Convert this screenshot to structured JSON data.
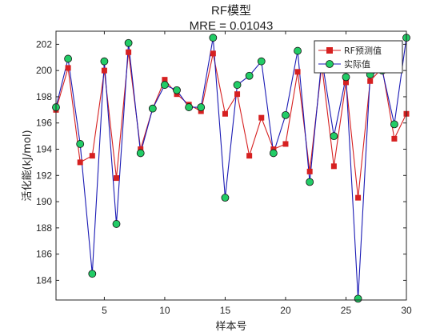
{
  "chart_data": {
    "type": "line",
    "title": "RF模型",
    "subtitle": "MRE = 0.01043",
    "xlabel": "样本号",
    "ylabel": "活化能(kJ/mol)",
    "xlim": [
      1,
      30
    ],
    "ylim": [
      182.5,
      203
    ],
    "xticks": [
      5,
      10,
      15,
      20,
      25,
      30
    ],
    "yticks": [
      184,
      186,
      188,
      190,
      192,
      194,
      196,
      198,
      200,
      202
    ],
    "grid": false,
    "legend_position": "top-right",
    "x": [
      1,
      2,
      3,
      4,
      5,
      6,
      7,
      8,
      9,
      10,
      11,
      12,
      13,
      14,
      15,
      16,
      17,
      18,
      19,
      20,
      21,
      22,
      23,
      24,
      25,
      26,
      27,
      28,
      29,
      30
    ],
    "series": [
      {
        "name": "RF预测值",
        "color": "#d62020",
        "marker": "square",
        "values": [
          197.0,
          200.2,
          193.0,
          193.5,
          200.0,
          191.8,
          201.4,
          194.0,
          197.1,
          199.3,
          198.2,
          197.4,
          196.9,
          201.3,
          196.7,
          198.2,
          193.5,
          196.4,
          194.0,
          194.4,
          199.9,
          192.3,
          200.4,
          192.7,
          199.1,
          190.3,
          199.2,
          200.2,
          194.8,
          196.7
        ]
      },
      {
        "name": "实际值",
        "color": "#1a1ab4",
        "marker": "circle",
        "marker_fill": "#22cc66",
        "values": [
          197.2,
          200.9,
          194.4,
          184.5,
          200.7,
          188.3,
          202.1,
          193.7,
          197.1,
          198.9,
          198.5,
          197.2,
          197.2,
          202.5,
          190.3,
          198.9,
          199.6,
          200.7,
          193.7,
          196.6,
          201.5,
          191.5,
          200.9,
          195.0,
          199.5,
          182.6,
          199.7,
          200.0,
          195.9,
          202.5
        ]
      }
    ]
  }
}
